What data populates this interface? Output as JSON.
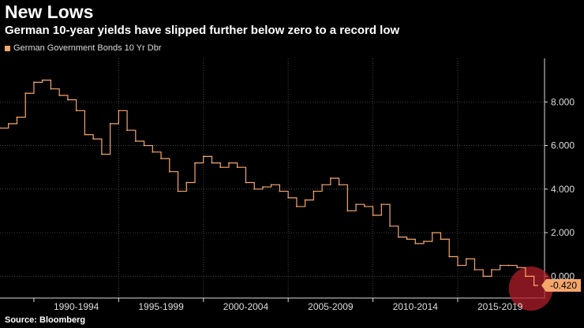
{
  "title": "New Lows",
  "subtitle": "German 10-year yields have slipped further below zero to a record low",
  "legend": {
    "label": "German Government Bonds 10 Yr Dbr"
  },
  "source": "Source: Bloomberg",
  "colors": {
    "series": "#f5a66b",
    "background": "#000000",
    "highlight": "#b01e2a",
    "label_bg": "#f5a66b"
  },
  "chart_data": {
    "type": "line",
    "title": "New Lows",
    "subtitle": "German 10-year yields have slipped further below zero to a record low",
    "xlabel": "",
    "ylabel": "",
    "ylim": [
      -1.0,
      10.0
    ],
    "xlim": [
      1988.0,
      2019.75
    ],
    "y_ticks": [
      "8.000",
      "6.000",
      "4.000",
      "2.000",
      "0.000"
    ],
    "y_tick_values": [
      8,
      6,
      4,
      2,
      0
    ],
    "x_ticks": [
      "1990-1994",
      "1995-1999",
      "2000-2004",
      "2005-2009",
      "2010-2014",
      "2015-2019"
    ],
    "x_tick_ranges": [
      [
        1990,
        1995
      ],
      [
        1995,
        2000
      ],
      [
        2000,
        2005
      ],
      [
        2005,
        2010
      ],
      [
        2010,
        2015
      ],
      [
        2015,
        2020
      ]
    ],
    "last_value_label": "-0.420",
    "series": [
      {
        "name": "German Government Bonds 10 Yr Dbr",
        "x": [
          1988.0,
          1988.5,
          1989.0,
          1989.5,
          1990.0,
          1990.5,
          1991.0,
          1991.5,
          1992.0,
          1992.5,
          1993.0,
          1993.5,
          1994.0,
          1994.5,
          1995.0,
          1995.5,
          1996.0,
          1996.5,
          1997.0,
          1997.5,
          1998.0,
          1998.5,
          1999.0,
          1999.5,
          2000.0,
          2000.5,
          2001.0,
          2001.5,
          2002.0,
          2002.5,
          2003.0,
          2003.5,
          2004.0,
          2004.5,
          2005.0,
          2005.5,
          2006.0,
          2006.5,
          2007.0,
          2007.5,
          2008.0,
          2008.5,
          2009.0,
          2009.5,
          2010.0,
          2010.5,
          2011.0,
          2011.5,
          2012.0,
          2012.5,
          2013.0,
          2013.5,
          2014.0,
          2014.5,
          2015.0,
          2015.5,
          2016.0,
          2016.5,
          2017.0,
          2017.5,
          2018.0,
          2018.5,
          2019.0,
          2019.5
        ],
        "values": [
          6.8,
          7.0,
          7.3,
          8.4,
          8.9,
          9.0,
          8.6,
          8.3,
          8.1,
          7.6,
          6.5,
          6.3,
          5.6,
          7.0,
          7.6,
          6.7,
          6.2,
          6.0,
          5.7,
          5.4,
          4.8,
          3.9,
          4.3,
          5.2,
          5.5,
          5.2,
          5.0,
          5.2,
          5.0,
          4.3,
          4.0,
          4.1,
          4.2,
          3.9,
          3.6,
          3.2,
          3.5,
          3.9,
          4.2,
          4.5,
          4.2,
          3.0,
          3.3,
          3.2,
          2.8,
          3.3,
          2.3,
          1.8,
          1.7,
          1.5,
          1.6,
          2.0,
          1.7,
          0.9,
          0.5,
          0.8,
          0.3,
          0.0,
          0.3,
          0.5,
          0.5,
          0.4,
          0.0,
          -0.42
        ]
      }
    ]
  }
}
